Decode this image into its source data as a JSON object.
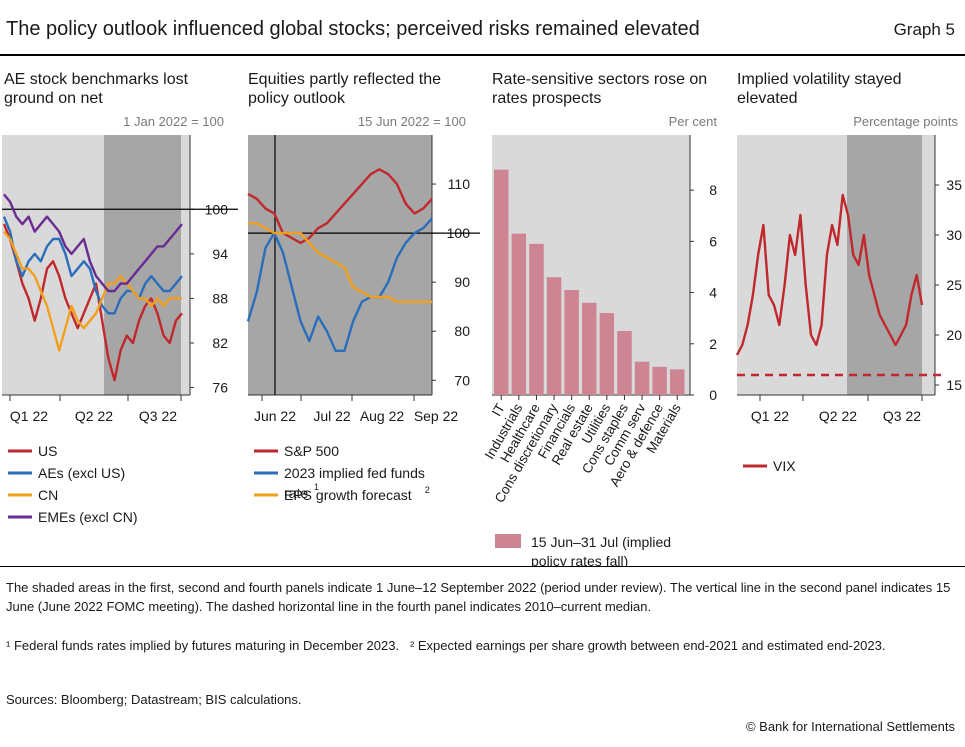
{
  "header": {
    "title": "The policy outlook influenced global stocks; perceived risks remained elevated",
    "graph_number": "Graph 5"
  },
  "colors": {
    "red": "#c0282d",
    "blue": "#2a6ebb",
    "orange": "#f2a01c",
    "purple": "#6a2c91",
    "bar": "#cd8593",
    "plot_bg": "#d9d9d9",
    "shade": "#a6a6a6"
  },
  "chart_data": [
    {
      "type": "line",
      "panel_title": "AE stock benchmarks lost ground on net",
      "unit_label": "1 Jan 2022 = 100",
      "ylim": [
        75,
        110
      ],
      "yticks": [
        76,
        82,
        88,
        94,
        100
      ],
      "x_tick_labels": [
        "Q1 22",
        "Q2 22",
        "Q3 22"
      ],
      "shaded_period": "1 June–12 September 2022",
      "reference_line": 100,
      "series": [
        {
          "name": "US",
          "color": "red",
          "values": [
            98,
            96,
            93,
            90,
            88,
            85,
            88,
            92,
            93,
            91,
            88,
            86,
            84,
            86,
            88,
            90,
            85,
            80,
            77,
            81,
            83,
            82,
            85,
            87,
            88,
            86,
            83,
            82,
            85,
            86
          ]
        },
        {
          "name": "AEs (excl US)",
          "color": "blue",
          "values": [
            99,
            97,
            93,
            91,
            93,
            94,
            93,
            95,
            96,
            96,
            94,
            91,
            92,
            93,
            92,
            89,
            87,
            86,
            86,
            88,
            89,
            89,
            88,
            90,
            91,
            90,
            89,
            89,
            90,
            91
          ]
        },
        {
          "name": "CN",
          "color": "orange",
          "values": [
            97,
            96,
            94,
            92,
            92,
            91,
            89,
            87,
            84,
            81,
            84,
            87,
            85,
            84,
            85,
            86,
            88,
            90,
            90,
            91,
            90,
            89,
            88,
            88,
            87,
            88,
            87,
            88,
            88,
            88
          ]
        },
        {
          "name": "EMEs (excl CN)",
          "color": "purple",
          "values": [
            102,
            101,
            99,
            98,
            99,
            97,
            98,
            99,
            98,
            97,
            95,
            94,
            95,
            96,
            93,
            91,
            90,
            89,
            89,
            90,
            90,
            91,
            92,
            93,
            94,
            95,
            95,
            96,
            97,
            98
          ]
        }
      ]
    },
    {
      "type": "line",
      "panel_title": "Equities partly reflected the policy outlook",
      "unit_label": "15 Jun 2022 = 100",
      "ylim": [
        67,
        120
      ],
      "yticks": [
        70,
        80,
        90,
        100,
        110
      ],
      "x_tick_labels": [
        "Jun 22",
        "Jul 22",
        "Aug 22",
        "Sep 22"
      ],
      "shaded_period": "1 June–12 September 2022",
      "vertical_line": "15 June (June 2022 FOMC meeting)",
      "reference_line": 100,
      "series": [
        {
          "name": "S&P 500",
          "color": "red",
          "values": [
            108,
            107,
            105,
            104,
            100,
            99,
            98,
            99,
            101,
            102,
            104,
            106,
            108,
            110,
            112,
            113,
            112,
            110,
            106,
            104,
            105,
            107
          ]
        },
        {
          "name": "2023 implied fed funds rate",
          "name_sup": "1",
          "color": "blue",
          "values": [
            82,
            88,
            97,
            100,
            96,
            89,
            82,
            78,
            83,
            80,
            76,
            76,
            82,
            86,
            87,
            87,
            90,
            95,
            98,
            100,
            101,
            103
          ]
        },
        {
          "name": "EPS growth forecast",
          "name_sup": "2",
          "color": "orange",
          "values": [
            102,
            102,
            101,
            100,
            100,
            100,
            100,
            98,
            96,
            95,
            94,
            93,
            89,
            88,
            87,
            87,
            87,
            86,
            86,
            86,
            86,
            86
          ]
        }
      ]
    },
    {
      "type": "bar",
      "panel_title": "Rate-sensitive sectors rose on rates prospects",
      "unit_label": "Per cent",
      "ylim": [
        0,
        10
      ],
      "yticks": [
        0,
        2,
        4,
        6,
        8
      ],
      "categories": [
        "IT",
        "Industrials",
        "Healthcare",
        "Cons discretionary",
        "Financials",
        "Real estate",
        "Utilities",
        "Cons staples",
        "Comm serv",
        "Aero & defence",
        "Materials"
      ],
      "values": [
        8.8,
        6.3,
        5.9,
        4.6,
        4.1,
        3.6,
        3.2,
        2.5,
        1.3,
        1.1,
        1.0
      ],
      "series": [
        {
          "name": "15 Jun–31 Jul (implied policy rates fall)",
          "color": "bar"
        }
      ]
    },
    {
      "type": "line",
      "panel_title": "Implied volatility stayed elevated",
      "unit_label": "Percentage points",
      "ylim": [
        14,
        40
      ],
      "yticks": [
        15,
        20,
        25,
        30,
        35
      ],
      "x_tick_labels": [
        "Q1 22",
        "Q2 22",
        "Q3 22"
      ],
      "shaded_period": "1 June–12 September 2022",
      "median_line": {
        "value": 16,
        "label": "2010–current median"
      },
      "series": [
        {
          "name": "VIX",
          "color": "red",
          "values": [
            18,
            19,
            21,
            24,
            28,
            31,
            24,
            23,
            21,
            25,
            30,
            28,
            32,
            25,
            20,
            19,
            21,
            28,
            31,
            29,
            34,
            32,
            28,
            27,
            30,
            26,
            24,
            22,
            21,
            20,
            19,
            20,
            21,
            24,
            26,
            23
          ]
        }
      ]
    }
  ],
  "footer": {
    "note1": "The shaded areas in the first, second and fourth panels indicate 1 June–12 September 2022 (period under review). The vertical line in the second panel indicates 15 June (June 2022 FOMC meeting). The dashed horizontal line in the fourth panel indicates 2010–current median.",
    "fn1": "¹ Federal funds rates implied by futures maturing in December 2023.",
    "fn2": "² Expected earnings per share growth between end-2021 and estimated end-2023.",
    "sources": "Sources: Bloomberg; Datastream; BIS calculations.",
    "copyright": "© Bank for International Settlements"
  }
}
